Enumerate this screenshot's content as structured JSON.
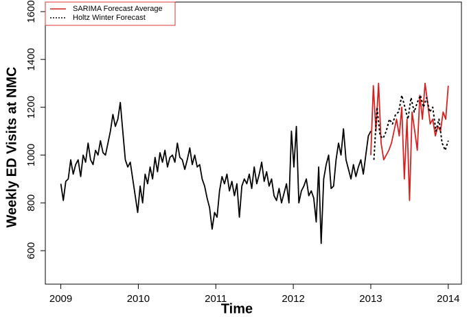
{
  "chart_data": {
    "type": "line",
    "ylabel": "Weekly ED Visits at NMC",
    "xlabel": "Time",
    "xlim": [
      2008.8,
      2014.17
    ],
    "xticks": [
      2009,
      2010,
      2011,
      2012,
      2013,
      2014
    ],
    "ylim": [
      460,
      1640
    ],
    "yticks": [
      600,
      800,
      1000,
      1200,
      1400,
      1600
    ],
    "grid": false,
    "legend": "top-left",
    "legend_color": "#e03030",
    "series": [
      {
        "color": "#000000",
        "dash": false,
        "x": [
          2009,
          2009.032,
          2009.064,
          2009.096,
          2009.128,
          2009.16,
          2009.192,
          2009.224,
          2009.256,
          2009.288,
          2009.32,
          2009.352,
          2009.384,
          2009.416,
          2009.448,
          2009.48,
          2009.512,
          2009.544,
          2009.576,
          2009.608,
          2009.64,
          2009.672,
          2009.704,
          2009.736,
          2009.768,
          2009.8,
          2009.832,
          2009.864,
          2009.896,
          2009.928,
          2009.96,
          2009.992,
          2010.024,
          2010.056,
          2010.088,
          2010.12,
          2010.152,
          2010.184,
          2010.216,
          2010.248,
          2010.28,
          2010.312,
          2010.344,
          2010.376,
          2010.408,
          2010.44,
          2010.472,
          2010.504,
          2010.536,
          2010.568,
          2010.6,
          2010.632,
          2010.664,
          2010.696,
          2010.728,
          2010.76,
          2010.792,
          2010.824,
          2010.856,
          2010.888,
          2010.92,
          2010.952,
          2010.984,
          2011.016,
          2011.048,
          2011.08,
          2011.112,
          2011.144,
          2011.176,
          2011.208,
          2011.24,
          2011.272,
          2011.304,
          2011.336,
          2011.368,
          2011.4,
          2011.432,
          2011.464,
          2011.496,
          2011.528,
          2011.56,
          2011.592,
          2011.624,
          2011.656,
          2011.688,
          2011.72,
          2011.752,
          2011.784,
          2011.816,
          2011.848,
          2011.88,
          2011.912,
          2011.944,
          2011.976,
          2012.008,
          2012.04,
          2012.072,
          2012.104,
          2012.136,
          2012.168,
          2012.2,
          2012.232,
          2012.264,
          2012.296,
          2012.328,
          2012.36,
          2012.392,
          2012.424,
          2012.456,
          2012.488,
          2012.52,
          2012.552,
          2012.584,
          2012.616,
          2012.648,
          2012.68,
          2012.712,
          2012.744,
          2012.776,
          2012.808,
          2012.84,
          2012.872,
          2012.904,
          2012.936,
          2012.968,
          2013
        ],
        "values": [
          880,
          810,
          890,
          900,
          980,
          920,
          960,
          980,
          910,
          1000,
          970,
          1050,
          980,
          960,
          1020,
          1000,
          1060,
          1010,
          1000,
          1050,
          1100,
          1170,
          1120,
          1150,
          1220,
          1100,
          980,
          950,
          970,
          900,
          830,
          760,
          870,
          800,
          920,
          880,
          950,
          900,
          990,
          930,
          1010,
          970,
          1020,
          950,
          990,
          1000,
          970,
          1050,
          990,
          980,
          940,
          980,
          1030,
          960,
          1000,
          950,
          960,
          900,
          870,
          820,
          780,
          690,
          760,
          740,
          850,
          910,
          880,
          920,
          850,
          890,
          830,
          880,
          740,
          870,
          900,
          880,
          920,
          860,
          950,
          880,
          920,
          970,
          890,
          930,
          870,
          900,
          830,
          810,
          860,
          800,
          840,
          880,
          800,
          1100,
          950,
          1120,
          800,
          850,
          870,
          900,
          830,
          850,
          820,
          720,
          950,
          630,
          900,
          960,
          1000,
          860,
          870,
          980,
          1050,
          1000,
          1110,
          980,
          940,
          900,
          960,
          910,
          950,
          980,
          920,
          1000,
          1080,
          1100
        ]
      },
      {
        "name": "SARIMA Forecast Average",
        "color": "#d92020",
        "dash": false,
        "x": [
          2013,
          2013.033,
          2013.067,
          2013.1,
          2013.133,
          2013.167,
          2013.2,
          2013.233,
          2013.267,
          2013.3,
          2013.333,
          2013.367,
          2013.4,
          2013.433,
          2013.467,
          2013.5,
          2013.533,
          2013.567,
          2013.6,
          2013.633,
          2013.667,
          2013.7,
          2013.733,
          2013.767,
          2013.8,
          2013.833,
          2013.867,
          2013.9,
          2013.933,
          2013.967,
          2014
        ],
        "values": [
          1000,
          1290,
          1100,
          1300,
          1050,
          980,
          1000,
          1020,
          1050,
          1100,
          1150,
          1080,
          1200,
          900,
          1150,
          810,
          1180,
          1100,
          1020,
          1250,
          1150,
          1300,
          1220,
          1130,
          1150,
          1080,
          1120,
          1100,
          1180,
          1150,
          1290
        ]
      },
      {
        "name": "Holtz Winter Forecast",
        "color": "#000000",
        "dash": true,
        "x": [
          2013.04,
          2013.08,
          2013.12,
          2013.16,
          2013.2,
          2013.24,
          2013.28,
          2013.32,
          2013.36,
          2013.4,
          2013.44,
          2013.48,
          2013.52,
          2013.56,
          2013.6,
          2013.64,
          2013.68,
          2013.72,
          2013.76,
          2013.8,
          2013.84,
          2013.88,
          2013.92,
          2013.96,
          2014
        ],
        "values": [
          980,
          1200,
          1080,
          1070,
          1100,
          1150,
          1130,
          1170,
          1180,
          1250,
          1200,
          1150,
          1240,
          1180,
          1220,
          1250,
          1200,
          1240,
          1180,
          1200,
          1100,
          1150,
          1050,
          1020,
          1060
        ]
      }
    ]
  }
}
